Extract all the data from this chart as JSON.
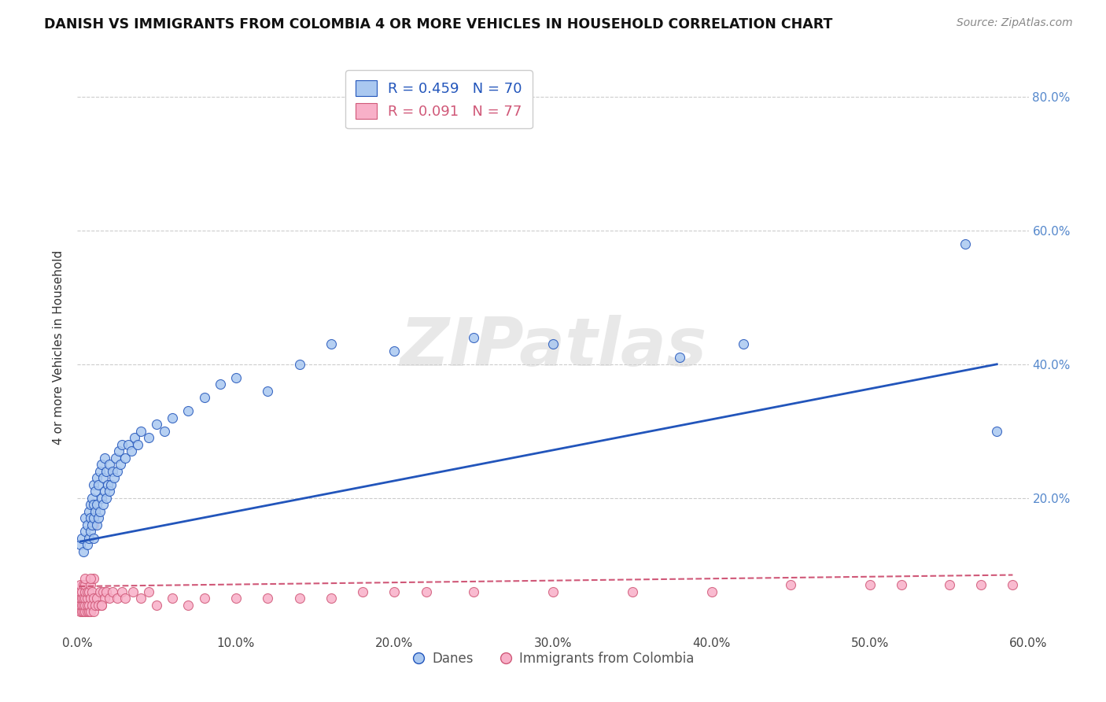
{
  "title": "DANISH VS IMMIGRANTS FROM COLOMBIA 4 OR MORE VEHICLES IN HOUSEHOLD CORRELATION CHART",
  "source": "Source: ZipAtlas.com",
  "ylabel": "4 or more Vehicles in Household",
  "xlim": [
    0.0,
    0.6
  ],
  "ylim": [
    0.0,
    0.85
  ],
  "xtick_labels": [
    "0.0%",
    "10.0%",
    "20.0%",
    "30.0%",
    "40.0%",
    "50.0%",
    "60.0%"
  ],
  "xtick_vals": [
    0.0,
    0.1,
    0.2,
    0.3,
    0.4,
    0.5,
    0.6
  ],
  "ytick_labels": [
    "20.0%",
    "40.0%",
    "60.0%",
    "80.0%"
  ],
  "ytick_vals": [
    0.2,
    0.4,
    0.6,
    0.8
  ],
  "legend_entries": [
    {
      "label": "R = 0.459   N = 70",
      "color_blue": "#a8c8f0"
    },
    {
      "label": "R = 0.091   N = 77",
      "color_pink": "#f8b0c0"
    }
  ],
  "legend_labels_bottom": [
    "Danes",
    "Immigrants from Colombia"
  ],
  "blue_color": "#aac8f0",
  "blue_line_color": "#2255bb",
  "pink_color": "#f8b0c8",
  "pink_line_color": "#d05878",
  "background_color": "#ffffff",
  "watermark_text": "ZIPatlas",
  "danes_x": [
    0.002,
    0.003,
    0.004,
    0.005,
    0.005,
    0.006,
    0.006,
    0.007,
    0.007,
    0.008,
    0.008,
    0.008,
    0.009,
    0.009,
    0.01,
    0.01,
    0.01,
    0.01,
    0.011,
    0.011,
    0.012,
    0.012,
    0.012,
    0.013,
    0.013,
    0.014,
    0.014,
    0.015,
    0.015,
    0.016,
    0.016,
    0.017,
    0.017,
    0.018,
    0.018,
    0.019,
    0.02,
    0.02,
    0.021,
    0.022,
    0.023,
    0.024,
    0.025,
    0.026,
    0.027,
    0.028,
    0.03,
    0.032,
    0.034,
    0.036,
    0.038,
    0.04,
    0.045,
    0.05,
    0.055,
    0.06,
    0.07,
    0.08,
    0.09,
    0.1,
    0.12,
    0.14,
    0.16,
    0.2,
    0.25,
    0.3,
    0.38,
    0.42,
    0.56,
    0.58
  ],
  "danes_y": [
    0.13,
    0.14,
    0.12,
    0.15,
    0.17,
    0.13,
    0.16,
    0.14,
    0.18,
    0.15,
    0.17,
    0.19,
    0.16,
    0.2,
    0.14,
    0.17,
    0.19,
    0.22,
    0.18,
    0.21,
    0.16,
    0.19,
    0.23,
    0.17,
    0.22,
    0.18,
    0.24,
    0.2,
    0.25,
    0.19,
    0.23,
    0.21,
    0.26,
    0.2,
    0.24,
    0.22,
    0.21,
    0.25,
    0.22,
    0.24,
    0.23,
    0.26,
    0.24,
    0.27,
    0.25,
    0.28,
    0.26,
    0.28,
    0.27,
    0.29,
    0.28,
    0.3,
    0.29,
    0.31,
    0.3,
    0.32,
    0.33,
    0.35,
    0.37,
    0.38,
    0.36,
    0.4,
    0.43,
    0.42,
    0.44,
    0.43,
    0.41,
    0.43,
    0.58,
    0.3
  ],
  "colombia_x": [
    0.001,
    0.001,
    0.001,
    0.002,
    0.002,
    0.002,
    0.002,
    0.002,
    0.003,
    0.003,
    0.003,
    0.003,
    0.004,
    0.004,
    0.004,
    0.004,
    0.005,
    0.005,
    0.005,
    0.005,
    0.005,
    0.006,
    0.006,
    0.006,
    0.006,
    0.007,
    0.007,
    0.007,
    0.008,
    0.008,
    0.008,
    0.009,
    0.009,
    0.01,
    0.01,
    0.01,
    0.011,
    0.012,
    0.013,
    0.014,
    0.015,
    0.016,
    0.017,
    0.018,
    0.02,
    0.022,
    0.025,
    0.028,
    0.03,
    0.035,
    0.04,
    0.045,
    0.05,
    0.06,
    0.07,
    0.08,
    0.1,
    0.12,
    0.14,
    0.16,
    0.18,
    0.2,
    0.22,
    0.25,
    0.3,
    0.35,
    0.4,
    0.45,
    0.5,
    0.52,
    0.55,
    0.57,
    0.59,
    0.005,
    0.008,
    0.01,
    0.015
  ],
  "colombia_y": [
    0.04,
    0.05,
    0.06,
    0.03,
    0.04,
    0.05,
    0.06,
    0.07,
    0.03,
    0.04,
    0.05,
    0.06,
    0.03,
    0.04,
    0.05,
    0.07,
    0.03,
    0.04,
    0.05,
    0.06,
    0.07,
    0.03,
    0.04,
    0.05,
    0.06,
    0.03,
    0.04,
    0.06,
    0.03,
    0.05,
    0.07,
    0.04,
    0.06,
    0.03,
    0.05,
    0.08,
    0.04,
    0.05,
    0.04,
    0.06,
    0.04,
    0.06,
    0.05,
    0.06,
    0.05,
    0.06,
    0.05,
    0.06,
    0.05,
    0.06,
    0.05,
    0.06,
    0.04,
    0.05,
    0.04,
    0.05,
    0.05,
    0.05,
    0.05,
    0.05,
    0.06,
    0.06,
    0.06,
    0.06,
    0.06,
    0.06,
    0.06,
    0.07,
    0.07,
    0.07,
    0.07,
    0.07,
    0.07,
    0.08,
    0.08,
    0.16,
    0.04
  ],
  "blue_line_x": [
    0.002,
    0.58
  ],
  "blue_line_y": [
    0.135,
    0.4
  ],
  "pink_line_x": [
    0.001,
    0.59
  ],
  "pink_line_y": [
    0.068,
    0.085
  ]
}
